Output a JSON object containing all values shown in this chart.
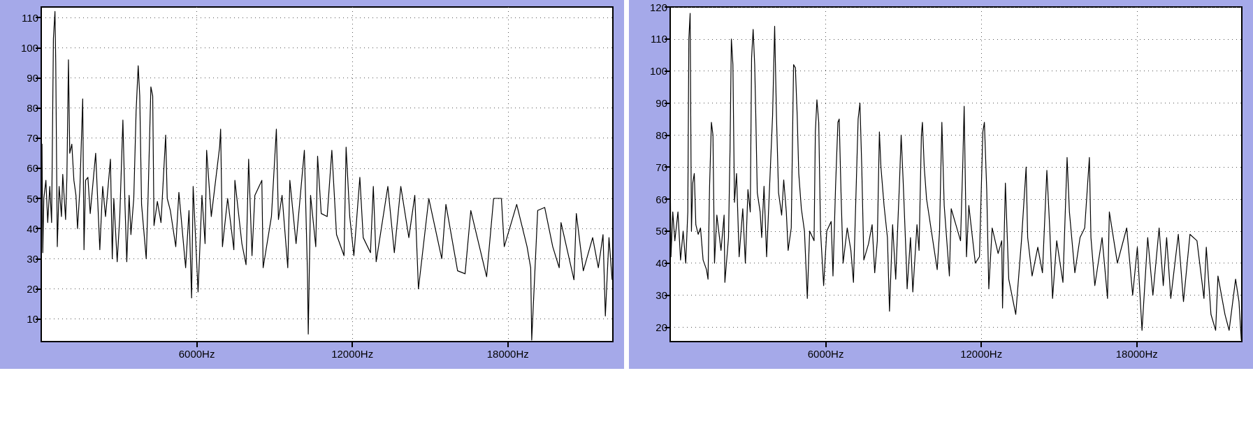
{
  "chart_data": [
    {
      "type": "line",
      "xlim": [
        0,
        22050
      ],
      "ylim": [
        2.5,
        113.5
      ],
      "xticks": [
        {
          "value": 6000,
          "label": "6000Hz"
        },
        {
          "value": 12000,
          "label": "12000Hz"
        },
        {
          "value": 18000,
          "label": "18000Hz"
        }
      ],
      "yticks": [
        10,
        20,
        30,
        40,
        50,
        60,
        70,
        80,
        90,
        100,
        110
      ],
      "grid": true,
      "marker": "none",
      "line_style": "solid",
      "series": [
        {
          "color": "#000000",
          "x": [
            0,
            30,
            60,
            100,
            180,
            250,
            330,
            400,
            470,
            530,
            560,
            620,
            690,
            780,
            830,
            940,
            990,
            1050,
            1100,
            1180,
            1260,
            1340,
            1400,
            1490,
            1600,
            1650,
            1710,
            1800,
            1890,
            2100,
            2260,
            2370,
            2480,
            2670,
            2740,
            2800,
            2930,
            3030,
            3150,
            3230,
            3300,
            3390,
            3460,
            3570,
            3660,
            3740,
            3800,
            3870,
            4050,
            4120,
            4230,
            4300,
            4350,
            4480,
            4620,
            4800,
            4860,
            4980,
            5190,
            5310,
            5570,
            5700,
            5800,
            5860,
            6050,
            6200,
            6320,
            6380,
            6560,
            6880,
            6920,
            6990,
            7190,
            7430,
            7470,
            7740,
            7900,
            8000,
            8130,
            8240,
            8510,
            8560,
            8880,
            9070,
            9150,
            9290,
            9510,
            9590,
            9830,
            10150,
            10270,
            10300,
            10390,
            10590,
            10660,
            10800,
            11030,
            11210,
            11390,
            11680,
            11760,
            11900,
            12060,
            12290,
            12420,
            12700,
            12810,
            12920,
            13370,
            13620,
            13870,
            14180,
            14410,
            14550,
            14950,
            15450,
            15610,
            16060,
            16350,
            16570,
            17180,
            17450,
            17750,
            17860,
            18340,
            18740,
            18880,
            18920,
            19150,
            19420,
            19730,
            19980,
            20050,
            20550,
            20640,
            20910,
            21270,
            21490,
            21670,
            21760,
            21900,
            22020
          ],
          "values": [
            50,
            68,
            32,
            50,
            56,
            42,
            54,
            42,
            103,
            112,
            95,
            34,
            54,
            44,
            58,
            43,
            57,
            96,
            65,
            68,
            56,
            51,
            40,
            53,
            83,
            33,
            56,
            57,
            45,
            65,
            33,
            54,
            44,
            63,
            30,
            50,
            29,
            44,
            76,
            48,
            29,
            51,
            38,
            50,
            79,
            94,
            84,
            48,
            30,
            50,
            87,
            84,
            41,
            49,
            42,
            71,
            50,
            46,
            34,
            52,
            27,
            46,
            17,
            54,
            19,
            51,
            35,
            66,
            44,
            67,
            73,
            34,
            50,
            33,
            56,
            35,
            28,
            63,
            31,
            51,
            56,
            27,
            44,
            73,
            43,
            51,
            27,
            56,
            35,
            66,
            25,
            5,
            51,
            34,
            64,
            45,
            44,
            66,
            38,
            31,
            67,
            44,
            31,
            57,
            37,
            32,
            54,
            29,
            54,
            32,
            54,
            37,
            51,
            20,
            50,
            30,
            48,
            26,
            25,
            46,
            24,
            50,
            50,
            34,
            48,
            34,
            27,
            3,
            46,
            47,
            34,
            27,
            42,
            23,
            45,
            26,
            37,
            27,
            38,
            11,
            37,
            23
          ]
        }
      ]
    },
    {
      "type": "line",
      "xlim": [
        0,
        22050
      ],
      "ylim": [
        15.5,
        120
      ],
      "xticks": [
        {
          "value": 6000,
          "label": "6000Hz"
        },
        {
          "value": 12000,
          "label": "12000Hz"
        },
        {
          "value": 18000,
          "label": "18000Hz"
        }
      ],
      "yticks": [
        20,
        30,
        40,
        50,
        60,
        70,
        80,
        90,
        100,
        110,
        120
      ],
      "grid": true,
      "marker": "none",
      "line_style": "solid",
      "series": [
        {
          "color": "#000000",
          "x": [
            0,
            30,
            100,
            180,
            300,
            400,
            500,
            600,
            680,
            720,
            770,
            820,
            870,
            930,
            990,
            1080,
            1170,
            1270,
            1400,
            1460,
            1520,
            1590,
            1650,
            1710,
            1800,
            1960,
            2080,
            2110,
            2250,
            2310,
            2360,
            2420,
            2480,
            2560,
            2660,
            2800,
            2900,
            3000,
            3090,
            3140,
            3200,
            3260,
            3300,
            3360,
            3470,
            3530,
            3620,
            3720,
            3840,
            3950,
            4030,
            4100,
            4180,
            4300,
            4380,
            4480,
            4550,
            4670,
            4760,
            4830,
            4900,
            4960,
            5060,
            5180,
            5290,
            5380,
            5550,
            5600,
            5660,
            5730,
            5800,
            5920,
            6040,
            6210,
            6280,
            6380,
            6470,
            6520,
            6590,
            6670,
            6830,
            6970,
            7070,
            7250,
            7320,
            7390,
            7470,
            7650,
            7790,
            7890,
            7990,
            8070,
            8130,
            8250,
            8380,
            8460,
            8580,
            8700,
            8780,
            8840,
            8910,
            8990,
            9110,
            9140,
            9270,
            9360,
            9520,
            9600,
            9690,
            9730,
            9800,
            9890,
            10300,
            10390,
            10480,
            10570,
            10770,
            10840,
            11020,
            11200,
            11290,
            11340,
            11430,
            11520,
            11770,
            11930,
            12060,
            12120,
            12210,
            12290,
            12420,
            12650,
            12790,
            12820,
            12930,
            13060,
            13330,
            13550,
            13730,
            13790,
            13960,
            14180,
            14360,
            14530,
            14640,
            14750,
            14910,
            15150,
            15310,
            15400,
            15610,
            15810,
            15990,
            16170,
            16230,
            16380,
            16660,
            16870,
            16940,
            17250,
            17610,
            17840,
            18020,
            18200,
            18420,
            18620,
            18860,
            19020,
            19150,
            19310,
            19600,
            19800,
            20050,
            20320,
            20590,
            20680,
            20860,
            21040,
            21130,
            21400,
            21560,
            21810,
            21940,
            22030
          ],
          "values": [
            70,
            42,
            56,
            47,
            56,
            41,
            50,
            40,
            56,
            110,
            118,
            50,
            65,
            68,
            52,
            49,
            51,
            41,
            38,
            35,
            64,
            84,
            80,
            40,
            55,
            44,
            55,
            34,
            48,
            76,
            110,
            102,
            59,
            68,
            42,
            57,
            40,
            63,
            56,
            104,
            113,
            102,
            87,
            62,
            56,
            48,
            64,
            42,
            65,
            86,
            114,
            86,
            62,
            55,
            66,
            56,
            44,
            51,
            102,
            101,
            86,
            68,
            57,
            50,
            29,
            50,
            47,
            81,
            91,
            84,
            50,
            33,
            50,
            53,
            36,
            64,
            84,
            85,
            62,
            40,
            51,
            44,
            34,
            85,
            90,
            70,
            41,
            46,
            52,
            37,
            47,
            81,
            70,
            58,
            48,
            25,
            52,
            35,
            52,
            64,
            80,
            65,
            40,
            32,
            48,
            31,
            52,
            44,
            80,
            84,
            70,
            60,
            38,
            50,
            84,
            58,
            36,
            57,
            52,
            47,
            72,
            89,
            42,
            58,
            40,
            42,
            81,
            84,
            63,
            32,
            51,
            43,
            47,
            26,
            65,
            35,
            24,
            47,
            70,
            48,
            36,
            45,
            37,
            69,
            51,
            29,
            47,
            34,
            73,
            56,
            37,
            48,
            51,
            73,
            48,
            33,
            48,
            29,
            56,
            40,
            51,
            30,
            45,
            19,
            48,
            30,
            51,
            33,
            48,
            29,
            49,
            28,
            49,
            47,
            29,
            45,
            24,
            19,
            36,
            24,
            19,
            35,
            28,
            16
          ]
        }
      ]
    }
  ]
}
